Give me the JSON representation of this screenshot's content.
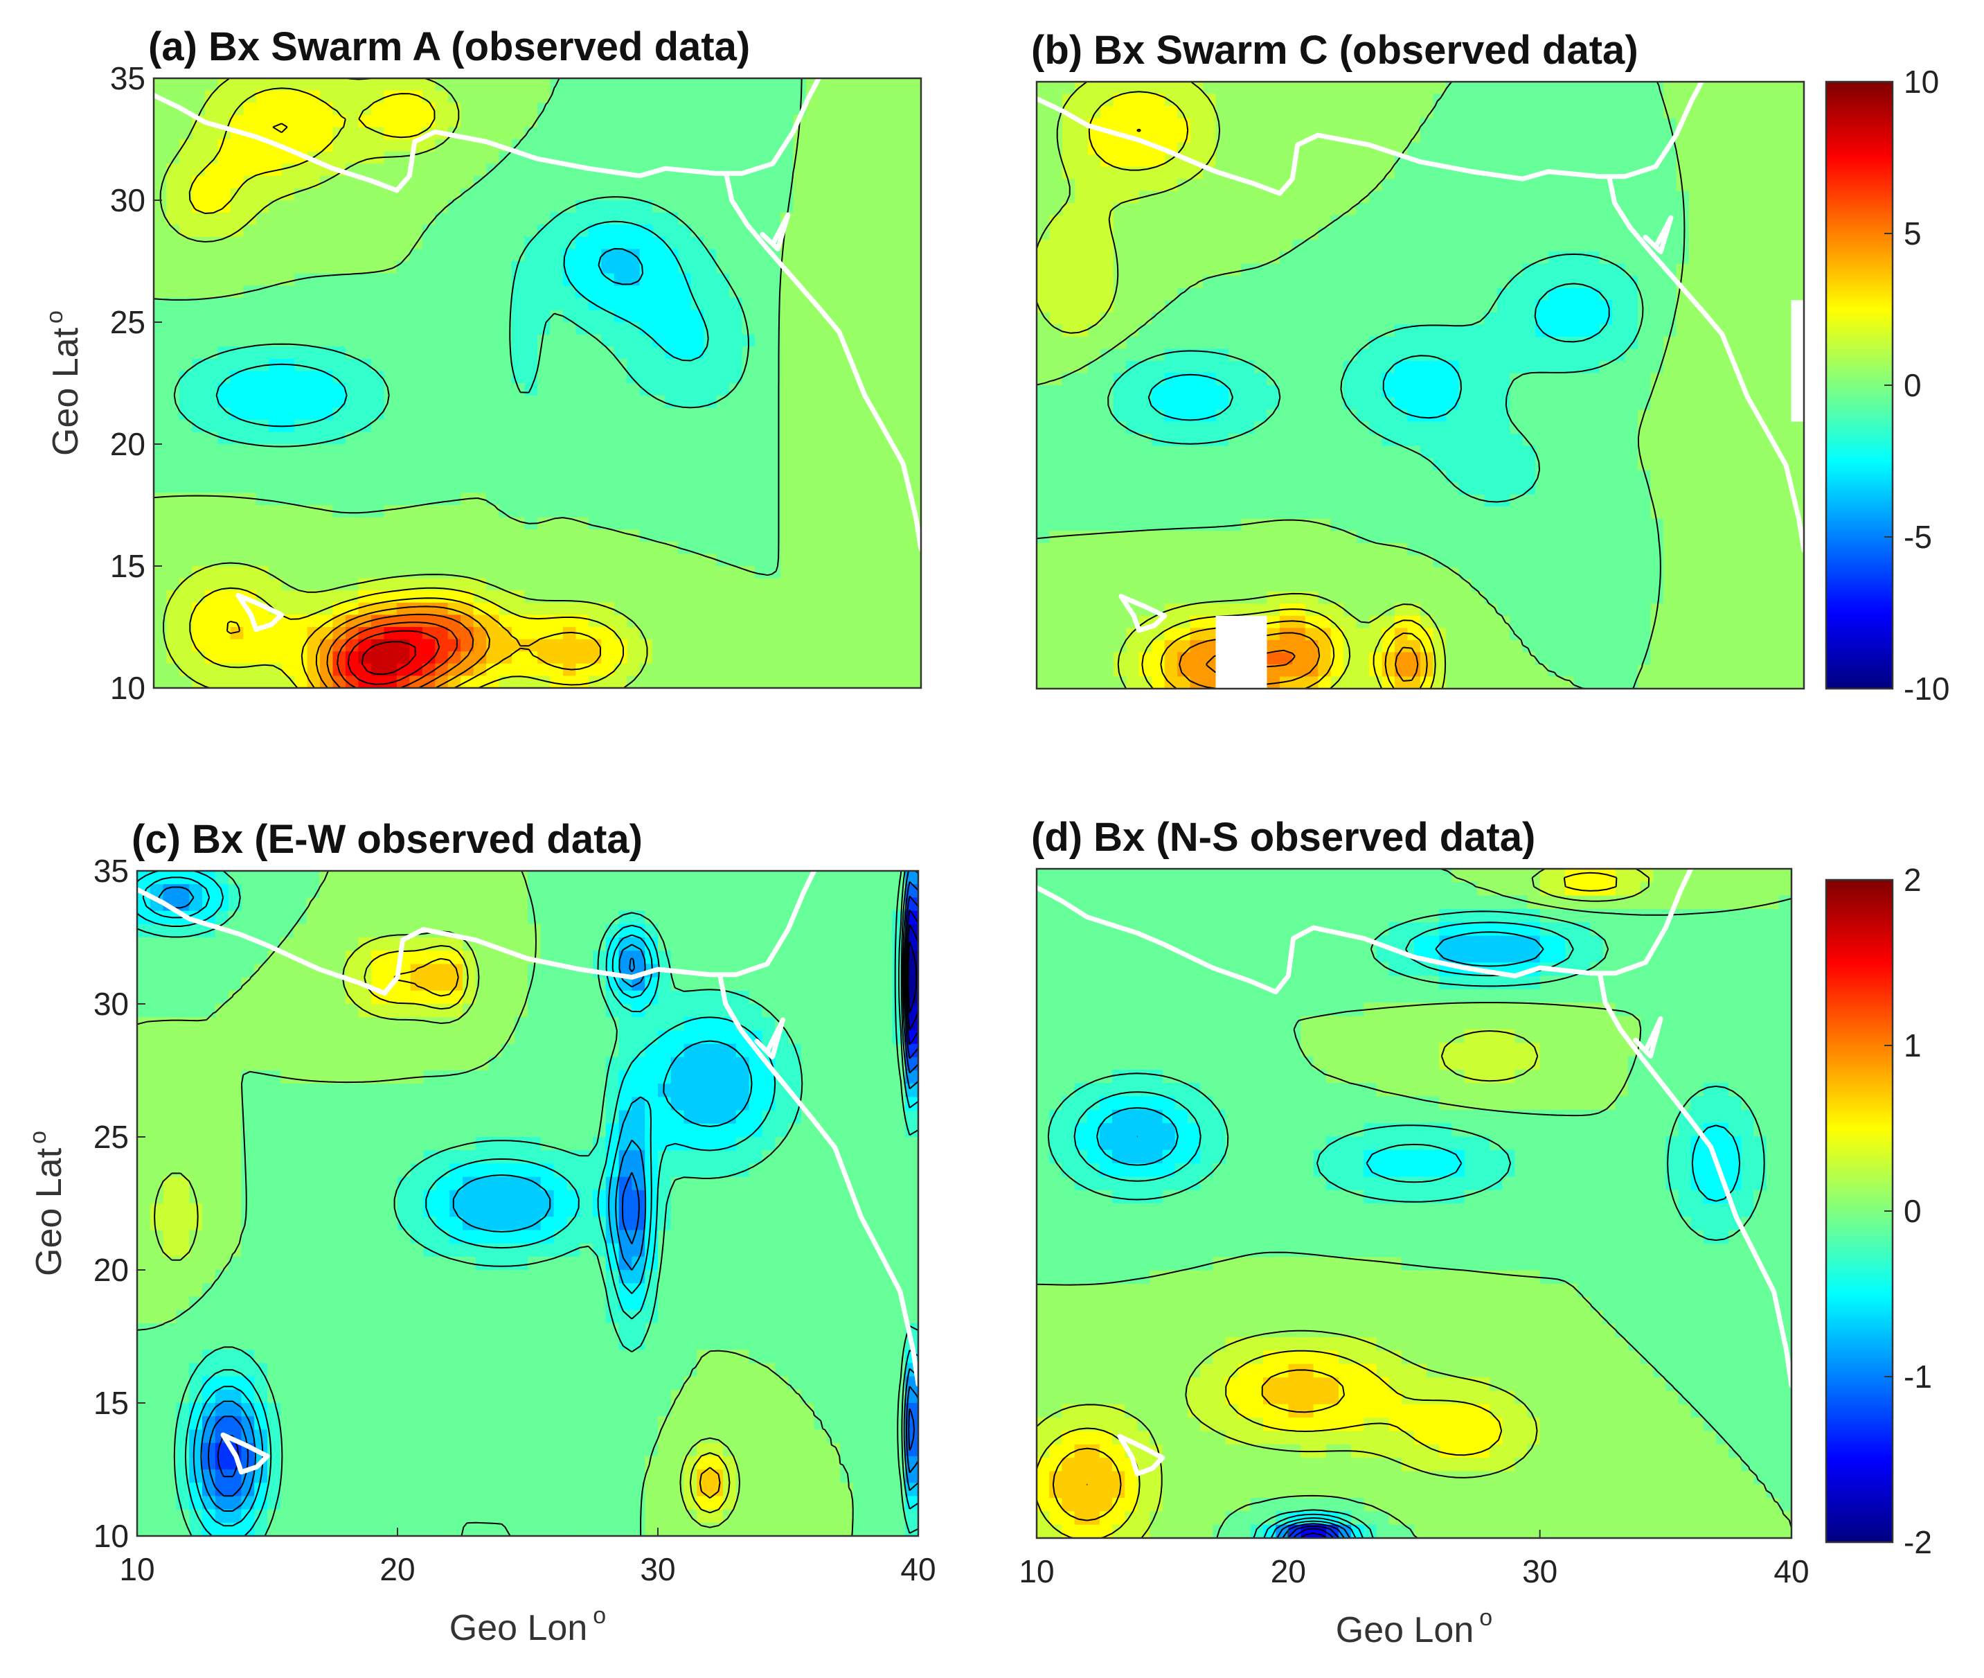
{
  "figure": {
    "colors": {
      "contour_line": "#000000",
      "coastline": "#ffffff",
      "mask": "#ffffff"
    },
    "colormap": "jet",
    "colorbars": [
      {
        "panels": [
          "a",
          "b"
        ],
        "ticks": [
          "10",
          "5",
          "0",
          "-5",
          "-10"
        ],
        "min": -10,
        "max": 10
      },
      {
        "panels": [
          "c",
          "d"
        ],
        "ticks": [
          "2",
          "1",
          "0",
          "-1",
          "-2"
        ],
        "min": -2,
        "max": 2
      }
    ]
  },
  "chart_data": [
    {
      "id": "a",
      "type": "heatmap",
      "title": "(a) Bx Swarm A (observed data)",
      "xlabel": "",
      "ylabel": "Geo Lat",
      "ylabel_sup": "o",
      "xlim": [
        10,
        40
      ],
      "ylim": [
        10,
        35
      ],
      "xticks": [
        "10",
        "20",
        "30",
        "40"
      ],
      "yticks": [
        "10",
        "15",
        "20",
        "25",
        "30",
        "35"
      ],
      "show_xticks": false,
      "clim": [
        -10,
        10
      ],
      "features": [
        {
          "lon": 18.5,
          "lat": 11.0,
          "value": 7.5,
          "sx": 2.5,
          "sy": 2.2
        },
        {
          "lon": 21.5,
          "lat": 12.0,
          "value": 5.0,
          "sx": 2.5,
          "sy": 2.0
        },
        {
          "lon": 26.5,
          "lat": 11.5,
          "value": 3.5,
          "sx": 2.5,
          "sy": 1.8
        },
        {
          "lon": 13.0,
          "lat": 12.5,
          "value": 3.0,
          "sx": 2.5,
          "sy": 2.5
        },
        {
          "lon": 15.0,
          "lat": 33.0,
          "value": 3.0,
          "sx": 3.0,
          "sy": 2.5
        },
        {
          "lon": 20.0,
          "lat": 33.5,
          "value": 2.5,
          "sx": 2.0,
          "sy": 1.6
        },
        {
          "lon": 12.0,
          "lat": 30.0,
          "value": 2.0,
          "sx": 2.0,
          "sy": 2.0
        },
        {
          "lon": 15.0,
          "lat": 22.0,
          "value": -3.0,
          "sx": 4.0,
          "sy": 2.0
        },
        {
          "lon": 28.0,
          "lat": 27.5,
          "value": -3.0,
          "sx": 3.0,
          "sy": 2.5
        },
        {
          "lon": 31.0,
          "lat": 24.0,
          "value": -2.0,
          "sx": 3.0,
          "sy": 3.0
        },
        {
          "lon": 24.5,
          "lat": 24.0,
          "value": -1.5,
          "sx": 0.8,
          "sy": 3.0
        },
        {
          "lon": 36.0,
          "lat": 24.0,
          "value": 1.0,
          "sx": 2.0,
          "sy": 3.0
        }
      ],
      "masks": []
    },
    {
      "id": "b",
      "type": "heatmap",
      "title": "(b) Bx Swarm C (observed data)",
      "xlabel": "",
      "ylabel": "",
      "xlim": [
        10,
        40
      ],
      "ylim": [
        10,
        35
      ],
      "xticks": [
        "10",
        "20",
        "30",
        "40"
      ],
      "yticks": [
        "10",
        "15",
        "20",
        "25",
        "30",
        "35"
      ],
      "show_xticks": false,
      "show_yticks": false,
      "clim": [
        -10,
        10
      ],
      "features": [
        {
          "lon": 17.0,
          "lat": 11.0,
          "value": 5.0,
          "sx": 3.0,
          "sy": 2.0
        },
        {
          "lon": 24.5,
          "lat": 11.0,
          "value": 4.5,
          "sx": 1.2,
          "sy": 2.0
        },
        {
          "lon": 20.5,
          "lat": 11.5,
          "value": 3.5,
          "sx": 2.0,
          "sy": 2.0
        },
        {
          "lon": 14.0,
          "lat": 33.0,
          "value": 3.0,
          "sx": 3.0,
          "sy": 2.5
        },
        {
          "lon": 11.5,
          "lat": 27.0,
          "value": 2.0,
          "sx": 2.0,
          "sy": 3.0
        },
        {
          "lon": 16.0,
          "lat": 22.0,
          "value": -2.5,
          "sx": 3.5,
          "sy": 2.0
        },
        {
          "lon": 25.0,
          "lat": 22.5,
          "value": -2.5,
          "sx": 3.0,
          "sy": 2.5
        },
        {
          "lon": 31.0,
          "lat": 25.5,
          "value": -2.5,
          "sx": 3.0,
          "sy": 2.5
        },
        {
          "lon": 28.0,
          "lat": 19.0,
          "value": -1.5,
          "sx": 2.5,
          "sy": 2.0
        },
        {
          "lon": 36.5,
          "lat": 24.0,
          "value": 1.0,
          "sx": 2.0,
          "sy": 3.0
        }
      ],
      "masks": [
        {
          "lon_min": 17.0,
          "lon_max": 19.0,
          "lat_min": 10.0,
          "lat_max": 13.0
        },
        {
          "lon_min": 39.5,
          "lon_max": 40.0,
          "lat_min": 21.0,
          "lat_max": 26.0
        }
      ]
    },
    {
      "id": "c",
      "type": "heatmap",
      "title": "(c) Bx (E-W observed data)",
      "xlabel": "Geo Lon",
      "ylabel": "Geo Lat",
      "xlabel_sup": "o",
      "ylabel_sup": "o",
      "xlim": [
        10,
        40
      ],
      "ylim": [
        10,
        35
      ],
      "xticks": [
        "10",
        "20",
        "30",
        "40"
      ],
      "yticks": [
        "10",
        "15",
        "20",
        "25",
        "30",
        "35"
      ],
      "clim": [
        -2,
        2
      ],
      "features": [
        {
          "lon": 13.5,
          "lat": 13.0,
          "value": -1.3,
          "sx": 1.5,
          "sy": 3.0
        },
        {
          "lon": 11.5,
          "lat": 34.0,
          "value": -0.9,
          "sx": 2.0,
          "sy": 1.2
        },
        {
          "lon": 29.0,
          "lat": 31.5,
          "value": -1.0,
          "sx": 1.0,
          "sy": 1.5
        },
        {
          "lon": 29.0,
          "lat": 22.0,
          "value": -1.0,
          "sx": 0.9,
          "sy": 4.0
        },
        {
          "lon": 32.0,
          "lat": 27.0,
          "value": -0.8,
          "sx": 3.0,
          "sy": 3.0
        },
        {
          "lon": 24.0,
          "lat": 22.5,
          "value": -0.8,
          "sx": 3.5,
          "sy": 2.0
        },
        {
          "lon": 39.8,
          "lat": 31.0,
          "value": -2.0,
          "sx": 0.4,
          "sy": 4.0
        },
        {
          "lon": 39.8,
          "lat": 14.0,
          "value": -1.2,
          "sx": 0.4,
          "sy": 3.0
        },
        {
          "lon": 20.0,
          "lat": 31.0,
          "value": 0.6,
          "sx": 2.0,
          "sy": 1.5
        },
        {
          "lon": 22.0,
          "lat": 31.0,
          "value": 0.5,
          "sx": 1.0,
          "sy": 1.5
        },
        {
          "lon": 32.0,
          "lat": 12.0,
          "value": 0.7,
          "sx": 1.0,
          "sy": 1.5
        },
        {
          "lon": 11.5,
          "lat": 22.0,
          "value": 0.4,
          "sx": 1.0,
          "sy": 2.0
        }
      ],
      "masks": []
    },
    {
      "id": "d",
      "type": "heatmap",
      "title": "(d) Bx (N-S observed data)",
      "xlabel": "Geo Lon",
      "ylabel": "",
      "xlabel_sup": "o",
      "xlim": [
        10,
        40
      ],
      "ylim": [
        10,
        35
      ],
      "xticks": [
        "10",
        "20",
        "30",
        "40"
      ],
      "yticks": [
        "10",
        "15",
        "20",
        "25",
        "30",
        "35"
      ],
      "show_yticks": false,
      "clim": [
        -2,
        2
      ],
      "features": [
        {
          "lon": 20.5,
          "lat": 15.5,
          "value": 0.7,
          "sx": 4.0,
          "sy": 2.0
        },
        {
          "lon": 12.0,
          "lat": 12.0,
          "value": 0.8,
          "sx": 2.5,
          "sy": 2.5
        },
        {
          "lon": 27.0,
          "lat": 14.0,
          "value": 0.5,
          "sx": 3.0,
          "sy": 1.8
        },
        {
          "lon": 21.0,
          "lat": 10.0,
          "value": -1.8,
          "sx": 1.6,
          "sy": 0.7
        },
        {
          "lon": 28.0,
          "lat": 32.0,
          "value": -0.8,
          "sx": 4.0,
          "sy": 1.2
        },
        {
          "lon": 14.0,
          "lat": 25.0,
          "value": -0.8,
          "sx": 3.0,
          "sy": 2.0
        },
        {
          "lon": 25.0,
          "lat": 24.0,
          "value": -0.5,
          "sx": 4.0,
          "sy": 1.5
        },
        {
          "lon": 37.0,
          "lat": 24.0,
          "value": -0.5,
          "sx": 2.0,
          "sy": 3.0
        },
        {
          "lon": 28.0,
          "lat": 28.0,
          "value": 0.3,
          "sx": 3.0,
          "sy": 1.5
        },
        {
          "lon": 32.0,
          "lat": 34.5,
          "value": 0.5,
          "sx": 2.5,
          "sy": 0.8
        }
      ],
      "masks": []
    }
  ]
}
